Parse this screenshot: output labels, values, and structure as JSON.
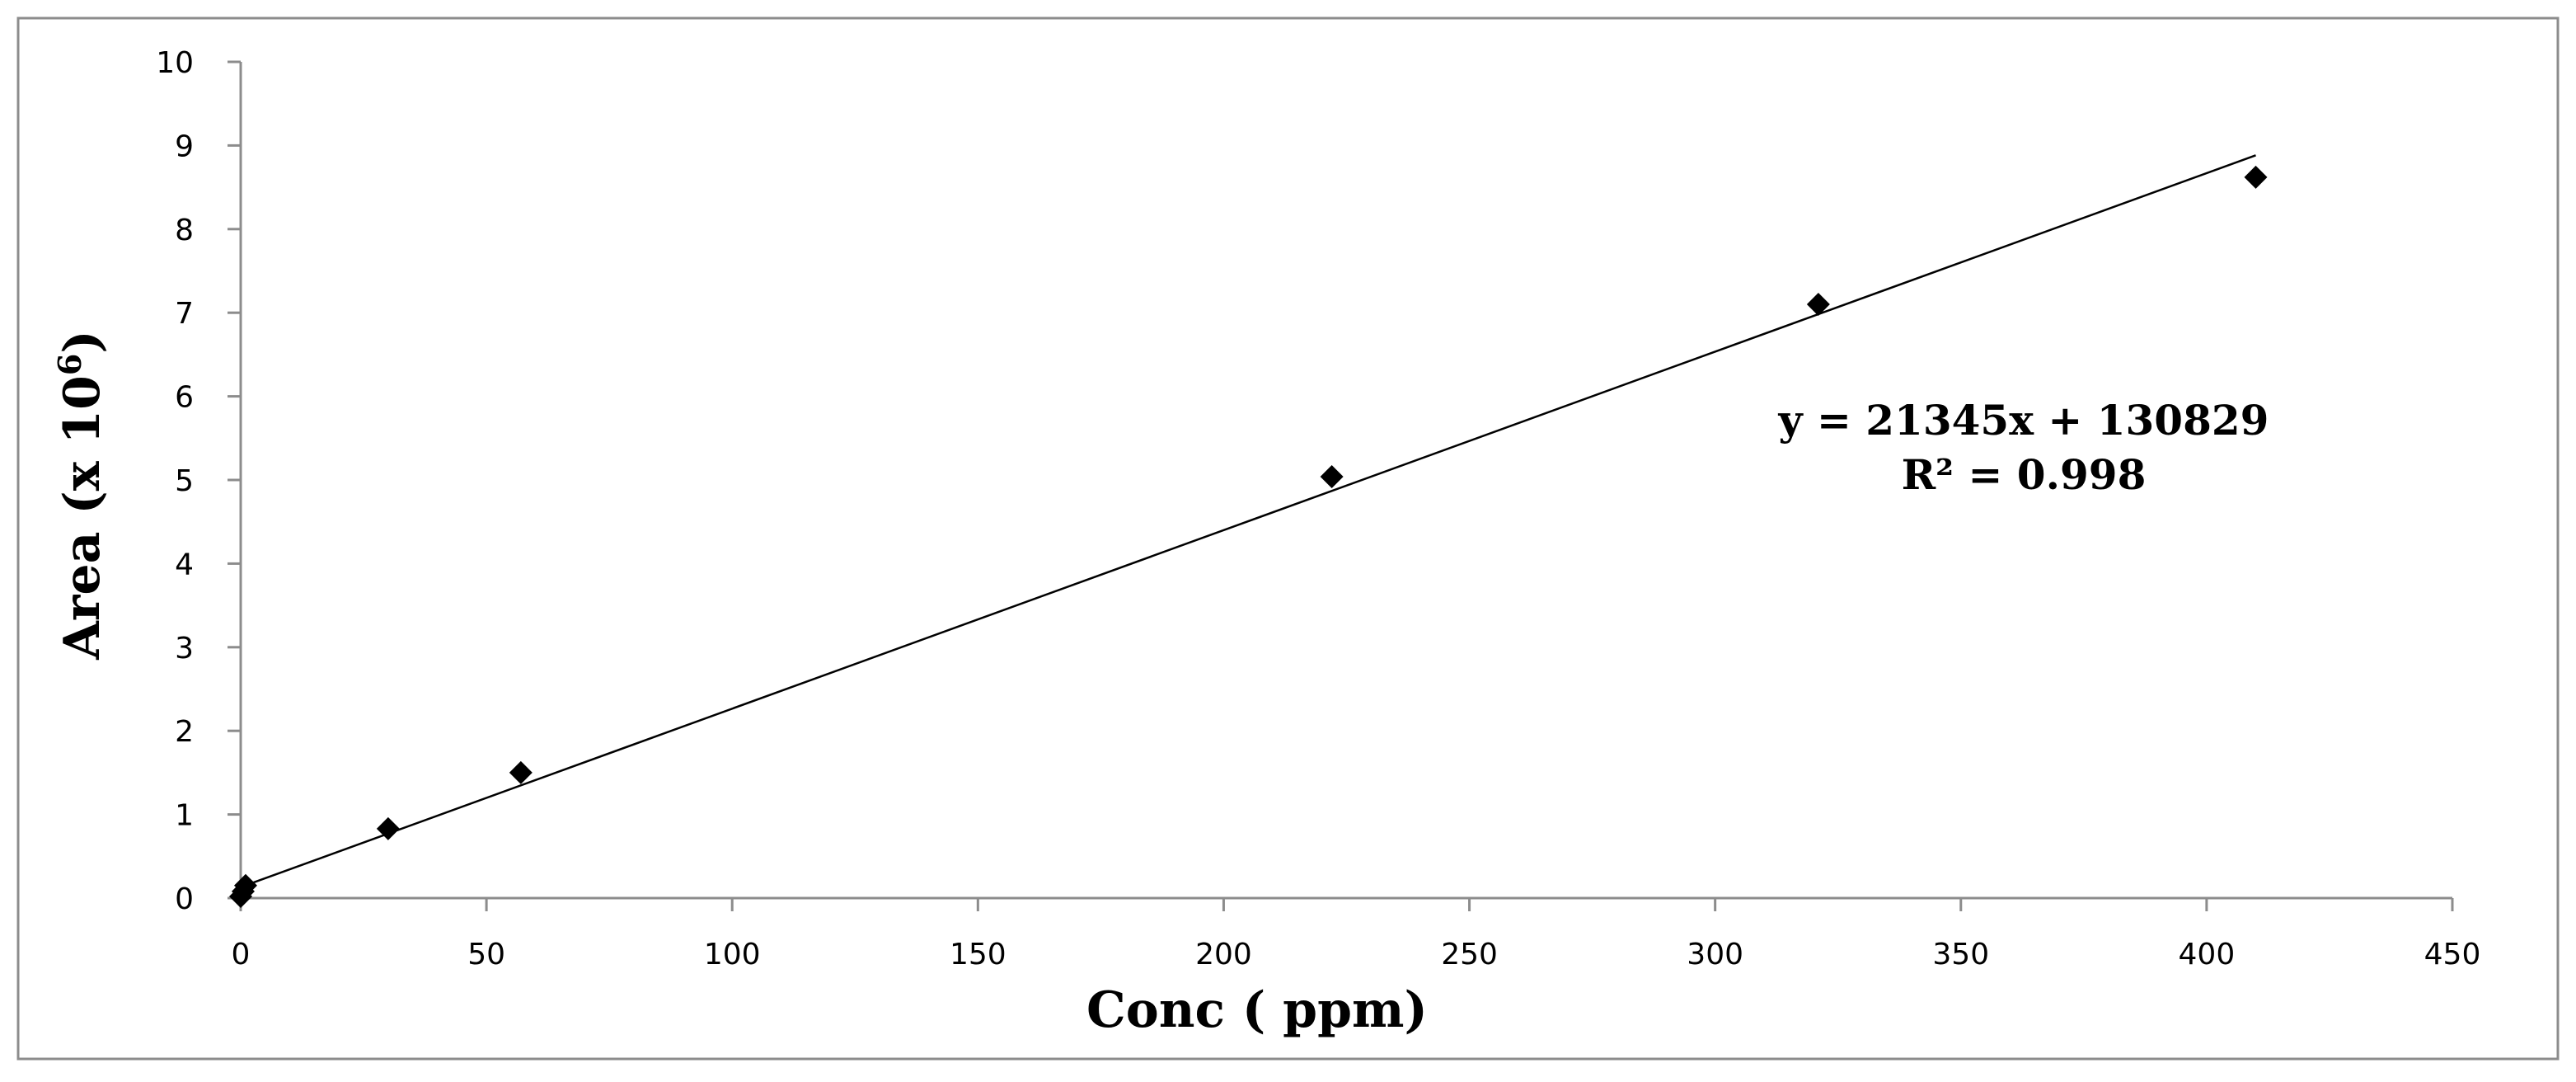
{
  "chart_data": {
    "type": "scatter",
    "title": "",
    "xlabel": "Conc ( ppm)",
    "ylabel_base": "Area (x 10",
    "ylabel_exponent": "6",
    "ylabel_close": ")",
    "xlim": [
      0,
      450
    ],
    "ylim": [
      0,
      10
    ],
    "x_ticks": [
      0,
      50,
      100,
      150,
      200,
      250,
      300,
      350,
      400,
      450
    ],
    "y_ticks": [
      0,
      1,
      2,
      3,
      4,
      5,
      6,
      7,
      8,
      9,
      10
    ],
    "grid": false,
    "legend": "none",
    "series": [
      {
        "marker": "diamond",
        "color": "#000000",
        "points": [
          {
            "x": 0,
            "y": 0.02
          },
          {
            "x": 0.5,
            "y": 0.08
          },
          {
            "x": 1,
            "y": 0.15
          },
          {
            "x": 30,
            "y": 0.83
          },
          {
            "x": 57,
            "y": 1.5
          },
          {
            "x": 222,
            "y": 5.04
          },
          {
            "x": 321,
            "y": 7.1
          },
          {
            "x": 410,
            "y": 8.62
          }
        ]
      }
    ],
    "trendline": {
      "type": "linear",
      "color": "#000000",
      "x_start": 0,
      "x_end": 410,
      "slope": 0.021345,
      "intercept": 0.130829
    },
    "annotations": {
      "equation": "y = 21345x + 130829",
      "r_squared": "R² = 0.998"
    }
  }
}
